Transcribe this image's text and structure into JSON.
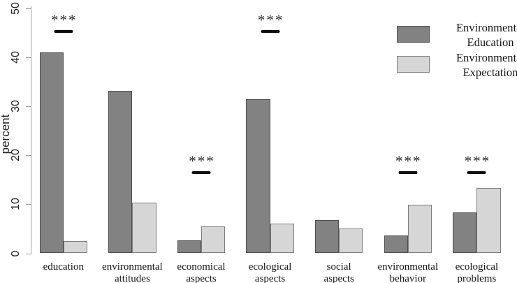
{
  "chart_data": {
    "type": "bar",
    "title": "",
    "xlabel": "",
    "ylabel": "percent",
    "ylim": [
      0,
      50
    ],
    "yticks": [
      0,
      10,
      20,
      30,
      40,
      50
    ],
    "grid": false,
    "legend_position": "top-right",
    "categories": [
      "education",
      "environmental attitudes",
      "economical aspects",
      "ecological aspects",
      "social aspects",
      "environmental behavior",
      "ecological problems"
    ],
    "series": [
      {
        "name": "Environmental Education",
        "color": "#828282",
        "border_color": "#4e4e4e",
        "values": [
          41.0,
          33.1,
          2.6,
          31.4,
          6.8,
          3.7,
          8.4
        ]
      },
      {
        "name": "Environmental Expectation",
        "color": "#d6d6d6",
        "border_color": "#7d7d7d",
        "values": [
          2.5,
          10.3,
          5.5,
          6.0,
          5.1,
          9.9,
          13.3
        ]
      }
    ],
    "significance_markers": [
      {
        "category": "education",
        "label": "***",
        "line_y": 45.2
      },
      {
        "category": "economical aspects",
        "label": "***",
        "line_y": 16.5
      },
      {
        "category": "ecological aspects",
        "label": "***",
        "line_y": 45.2
      },
      {
        "category": "environmental behavior",
        "label": "***",
        "line_y": 16.5
      },
      {
        "category": "ecological problems",
        "label": "***",
        "line_y": 16.5
      }
    ],
    "axis_color": "#9a9a9a"
  }
}
